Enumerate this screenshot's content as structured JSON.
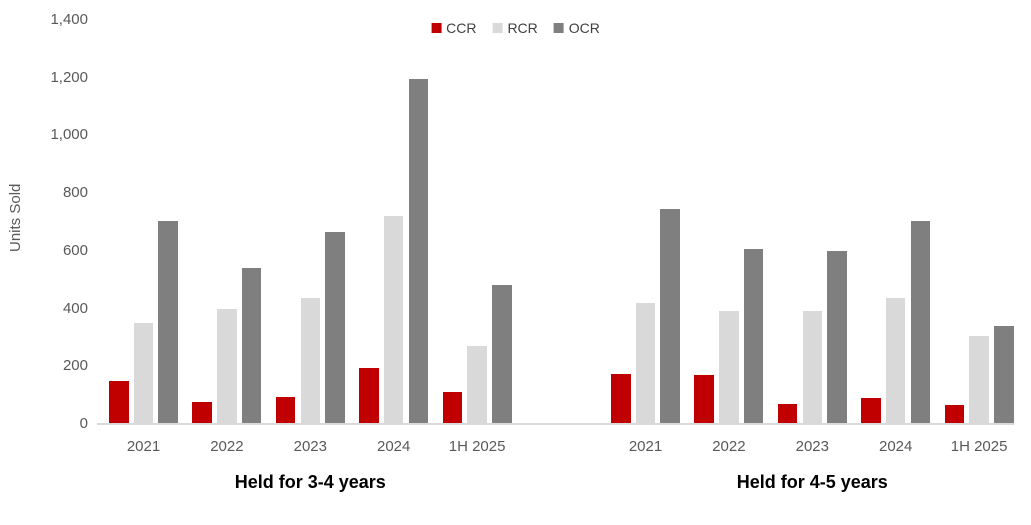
{
  "chart_data": {
    "type": "bar",
    "title": "",
    "ylabel": "Units Sold",
    "xlabel": "",
    "ylim": [
      0,
      1400
    ],
    "grid": false,
    "legend_position": "top-center",
    "yticks": [
      {
        "value": 0,
        "label": "0"
      },
      {
        "value": 200,
        "label": "200"
      },
      {
        "value": 400,
        "label": "400"
      },
      {
        "value": 600,
        "label": "600"
      },
      {
        "value": 800,
        "label": "800"
      },
      {
        "value": 1000,
        "label": "1,000"
      },
      {
        "value": 1200,
        "label": "1,200"
      },
      {
        "value": 1400,
        "label": "1,400"
      }
    ],
    "legend": [
      {
        "label": "CCR",
        "color": "#c00000"
      },
      {
        "label": "RCR",
        "color": "#d9d9d9"
      },
      {
        "label": "OCR",
        "color": "#7f7f7f"
      }
    ],
    "groups": [
      {
        "title": "Held for 3-4 years",
        "categories": [
          "2021",
          "2022",
          "2023",
          "2024",
          "1H 2025"
        ],
        "series": [
          {
            "name": "CCR",
            "values": [
              150,
              75,
              95,
              195,
              110
            ]
          },
          {
            "name": "RCR",
            "values": [
              350,
              400,
              435,
              720,
              270
            ]
          },
          {
            "name": "OCR",
            "values": [
              705,
              540,
              665,
              1195,
              480
            ]
          }
        ]
      },
      {
        "title": "Held for 4-5 years",
        "categories": [
          "2021",
          "2022",
          "2023",
          "2024",
          "1H 2025"
        ],
        "series": [
          {
            "name": "CCR",
            "values": [
              175,
              170,
              70,
              90,
              65
            ]
          },
          {
            "name": "RCR",
            "values": [
              420,
              390,
              390,
              435,
              305
            ]
          },
          {
            "name": "OCR",
            "values": [
              745,
              605,
              600,
              705,
              340
            ]
          }
        ]
      }
    ]
  },
  "colors": {
    "axis_line": "#d9d9d9",
    "tick_text": "#595959",
    "legend_text": "#404040",
    "group_title_text": "#000000",
    "background": "#ffffff"
  }
}
